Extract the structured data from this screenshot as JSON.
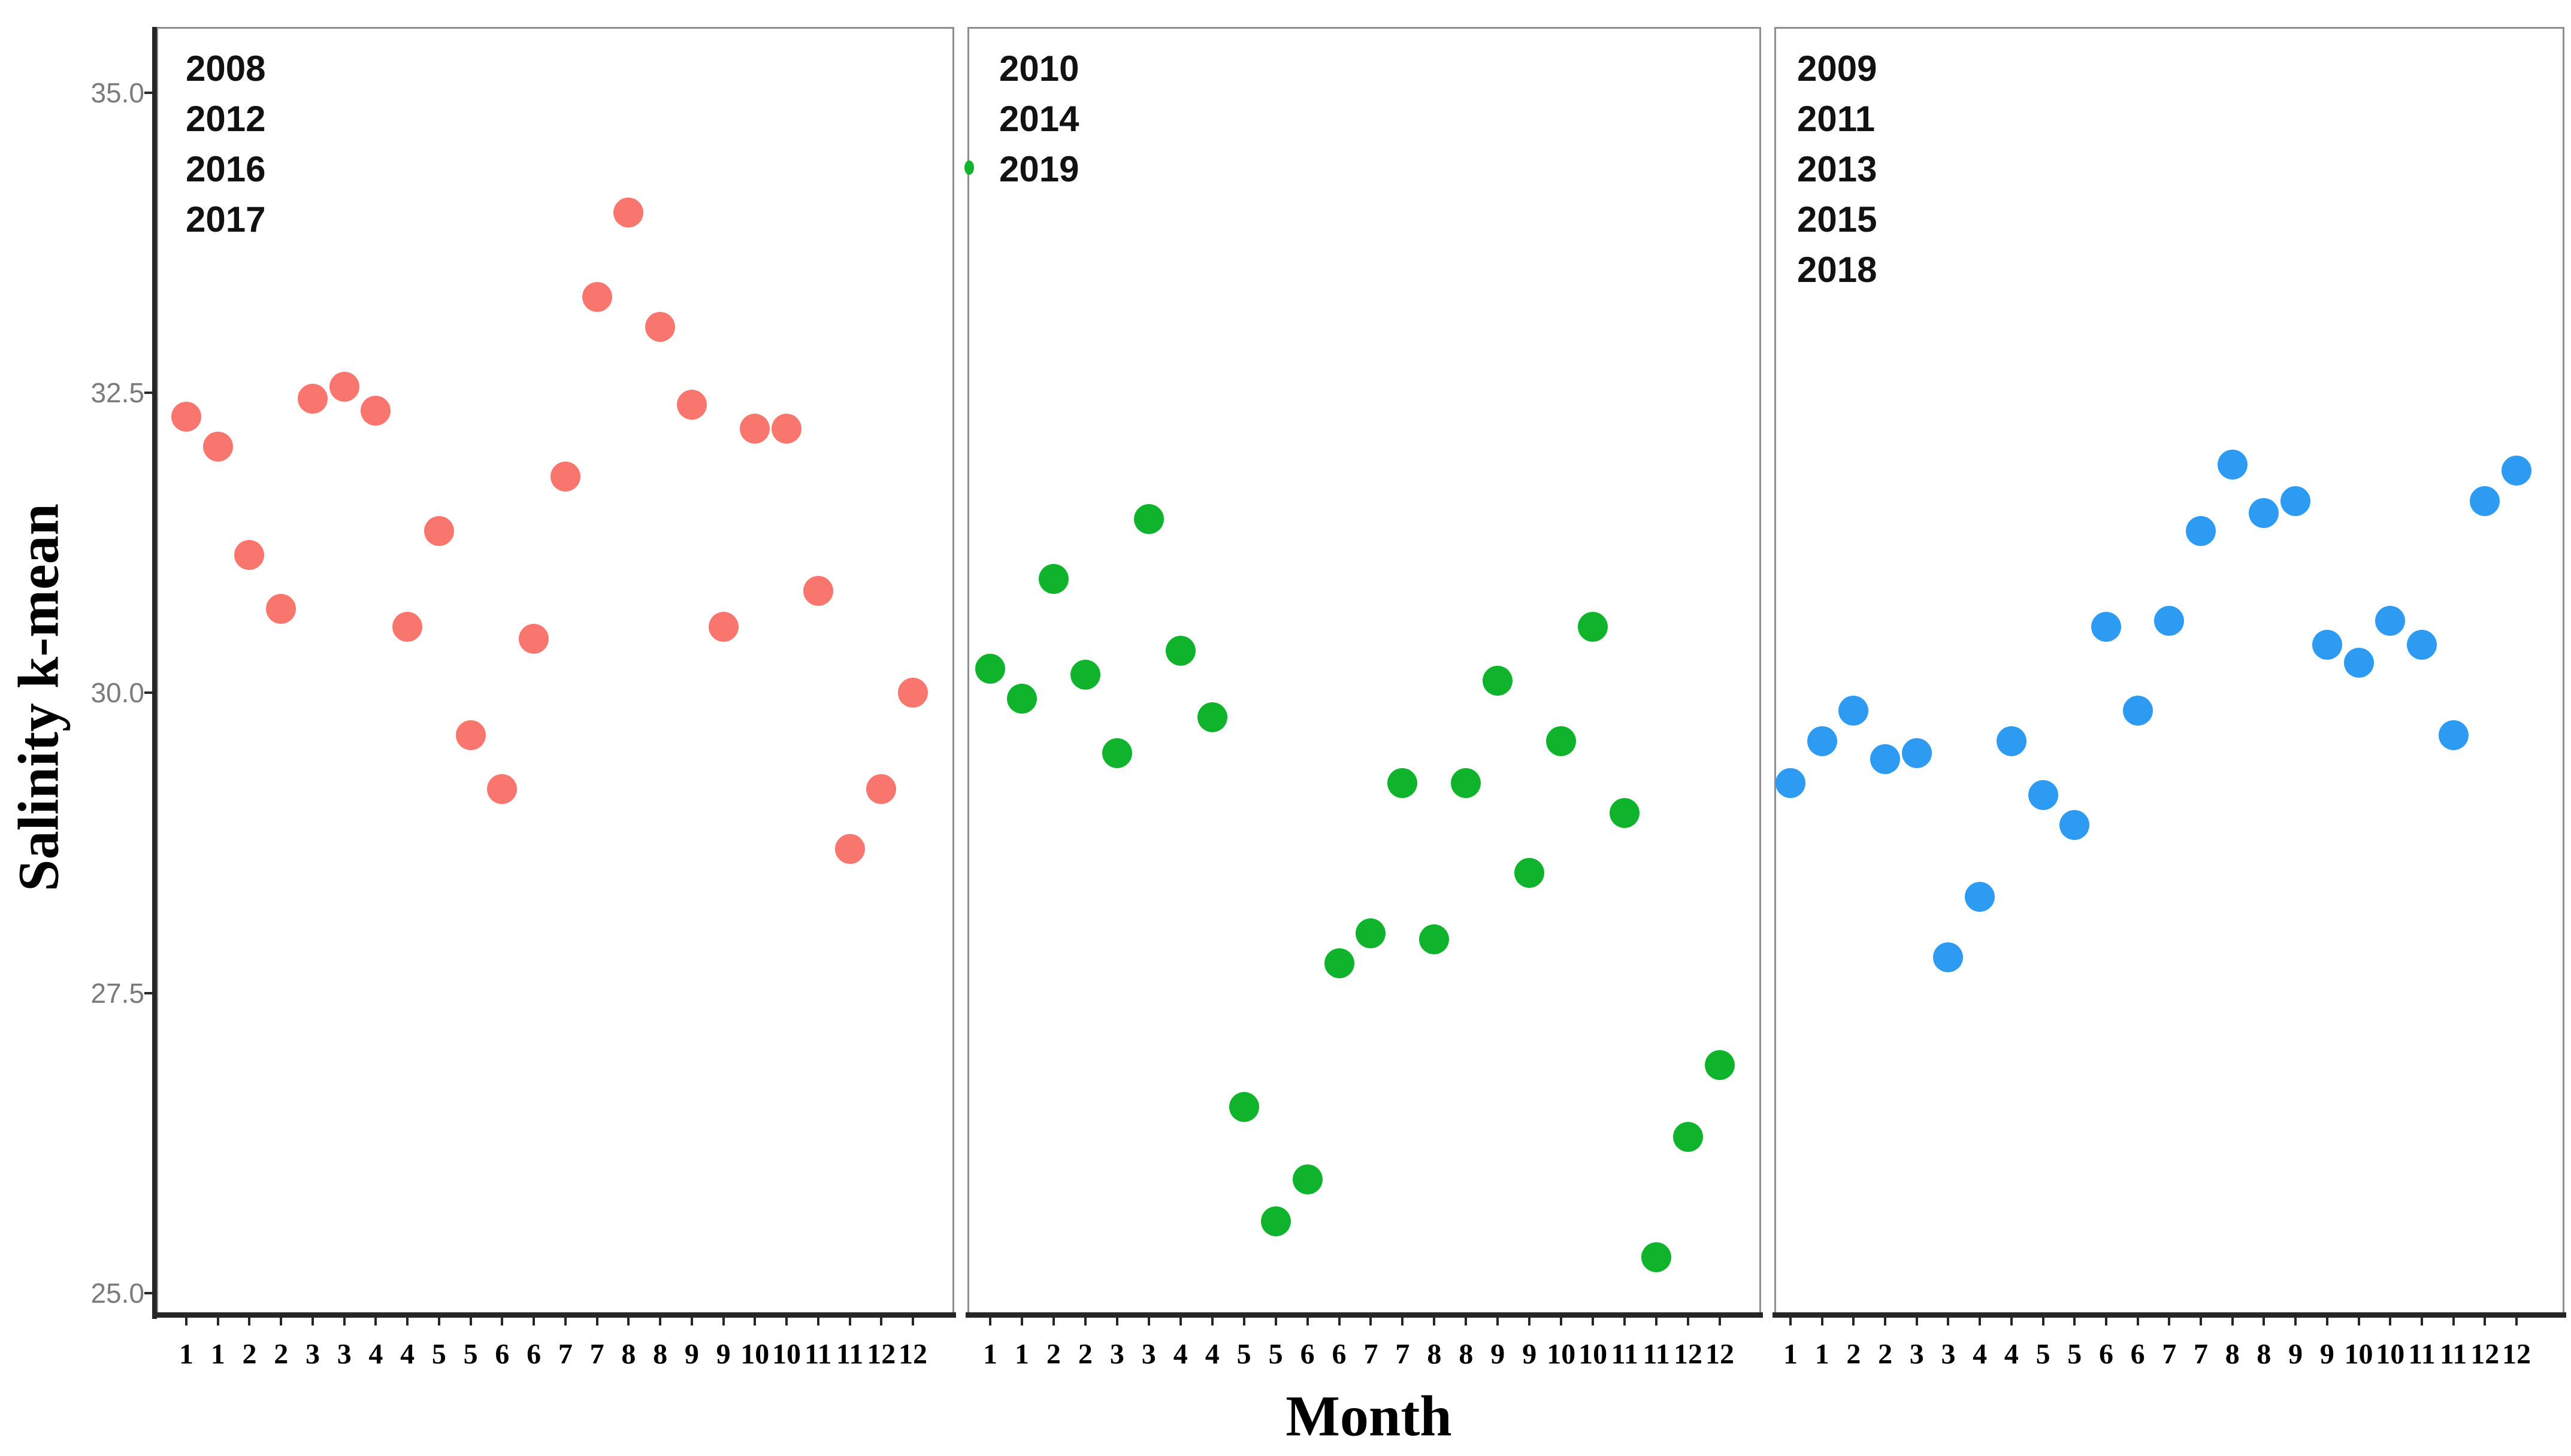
{
  "chart_data": {
    "type": "scatter",
    "title": "",
    "xlabel": "Month",
    "ylabel": "Salinity k-mean",
    "grid": false,
    "legend_position": "top-left-inside-each-panel",
    "ylim": [
      24.8,
      35.6
    ],
    "y_tick_values": [
      35.0,
      32.5,
      30.0,
      27.5,
      25.0
    ],
    "y_tick_labels": [
      "35.0",
      "32.5",
      "30.0",
      "27.5",
      "25.0"
    ],
    "months_per_panel": [
      1,
      1,
      2,
      2,
      3,
      3,
      4,
      4,
      5,
      5,
      6,
      6,
      7,
      7,
      8,
      8,
      9,
      9,
      10,
      10,
      11,
      11,
      12,
      12
    ],
    "panels": [
      {
        "id": "cluster-red",
        "years": [
          "2008",
          "2012",
          "2016",
          "2017"
        ],
        "point_color": "#F8766D",
        "values": [
          32.3,
          32.05,
          31.15,
          30.7,
          32.45,
          32.55,
          32.35,
          30.55,
          31.35,
          29.65,
          29.2,
          30.45,
          31.8,
          33.3,
          34.0,
          33.05,
          32.4,
          30.55,
          32.2,
          32.2,
          30.85,
          28.7,
          29.2,
          30.0
        ]
      },
      {
        "id": "cluster-green",
        "years": [
          "2010",
          "2014",
          "2019"
        ],
        "point_color": "#10B42C",
        "values": [
          30.2,
          29.95,
          30.95,
          30.15,
          29.5,
          31.45,
          30.35,
          29.8,
          26.55,
          25.6,
          25.95,
          27.75,
          28.0,
          29.25,
          27.95,
          29.25,
          30.1,
          28.5,
          29.6,
          30.55,
          29.0,
          25.3,
          26.3,
          26.9
        ]
      },
      {
        "id": "cluster-blue",
        "years": [
          "2009",
          "2011",
          "2013",
          "2015",
          "2018"
        ],
        "point_color": "#2E9BF3",
        "values": [
          29.25,
          29.6,
          29.85,
          29.45,
          29.5,
          27.8,
          28.3,
          29.6,
          29.15,
          28.9,
          30.55,
          29.85,
          30.6,
          31.35,
          31.9,
          31.5,
          31.6,
          30.4,
          30.25,
          30.6,
          30.4,
          29.65,
          31.6,
          31.85
        ]
      }
    ]
  },
  "colors": {
    "background": "#ffffff",
    "axis_spine": "#262626",
    "panel_border": "#8f8f8f",
    "y_tick_label": "#7b7b7b",
    "year_label": "#121212"
  },
  "artifacts": {
    "stray_green_tick_color": "#10B42C"
  }
}
